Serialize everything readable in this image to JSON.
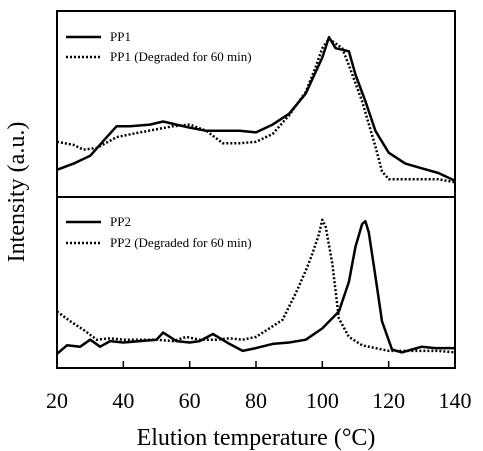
{
  "chart_data": [
    {
      "type": "line",
      "panel": "top",
      "xlabel": "Elution temperature (°C)",
      "ylabel": "Intensity (a.u.)",
      "xlim": [
        20,
        140
      ],
      "ylim": [
        0,
        1
      ],
      "legend_position": "top-left",
      "series": [
        {
          "name": "PP1",
          "style": "solid",
          "x": [
            20,
            25,
            30,
            35,
            38,
            42,
            48,
            52,
            56,
            60,
            65,
            70,
            75,
            80,
            85,
            90,
            95,
            100,
            102,
            104,
            108,
            110,
            113,
            116,
            120,
            125,
            130,
            135,
            140
          ],
          "y": [
            0.11,
            0.15,
            0.2,
            0.32,
            0.39,
            0.39,
            0.4,
            0.42,
            0.4,
            0.38,
            0.36,
            0.36,
            0.36,
            0.35,
            0.4,
            0.47,
            0.6,
            0.83,
            0.96,
            0.89,
            0.87,
            0.72,
            0.55,
            0.36,
            0.22,
            0.15,
            0.12,
            0.09,
            0.04
          ]
        },
        {
          "name": "PP1 (Degraded for 60 min)",
          "style": "dotted",
          "x": [
            20,
            25,
            28,
            32,
            38,
            45,
            55,
            60,
            65,
            70,
            75,
            80,
            85,
            90,
            95,
            98,
            100,
            102,
            104,
            106,
            108,
            112,
            116,
            118,
            120,
            125,
            130,
            135,
            140
          ],
          "y": [
            0.29,
            0.27,
            0.24,
            0.25,
            0.32,
            0.35,
            0.39,
            0.4,
            0.36,
            0.28,
            0.28,
            0.29,
            0.34,
            0.46,
            0.61,
            0.77,
            0.89,
            0.95,
            0.92,
            0.89,
            0.78,
            0.55,
            0.26,
            0.1,
            0.05,
            0.05,
            0.05,
            0.05,
            0.03
          ]
        }
      ]
    },
    {
      "type": "line",
      "panel": "bottom",
      "xlabel": "Elution temperature (°C)",
      "ylabel": "Intensity (a.u.)",
      "xlim": [
        20,
        140
      ],
      "ylim": [
        0,
        1
      ],
      "x_ticks": [
        20,
        40,
        60,
        80,
        100,
        120,
        140
      ],
      "legend_position": "top-left",
      "series": [
        {
          "name": "PP2",
          "style": "solid",
          "x": [
            20,
            23,
            27,
            30,
            33,
            36,
            40,
            45,
            50,
            52,
            56,
            60,
            63,
            67,
            72,
            76,
            80,
            85,
            90,
            95,
            100,
            105,
            108,
            110,
            112,
            113,
            114,
            116,
            118,
            121,
            124,
            127,
            130,
            134,
            140
          ],
          "y": [
            0.03,
            0.09,
            0.08,
            0.13,
            0.08,
            0.12,
            0.11,
            0.12,
            0.13,
            0.18,
            0.12,
            0.11,
            0.12,
            0.17,
            0.1,
            0.05,
            0.07,
            0.1,
            0.11,
            0.13,
            0.21,
            0.33,
            0.54,
            0.79,
            0.95,
            0.97,
            0.89,
            0.58,
            0.26,
            0.06,
            0.04,
            0.06,
            0.08,
            0.07,
            0.07
          ]
        },
        {
          "name": "PP2 (Degraded for 60 min)",
          "style": "dotted",
          "x": [
            20,
            24,
            28,
            32,
            36,
            40,
            45,
            50,
            55,
            59,
            63,
            68,
            72,
            76,
            80,
            84,
            88,
            92,
            95,
            97,
            99,
            100,
            101,
            103,
            105,
            108,
            112,
            116,
            120,
            125,
            130,
            135,
            140
          ],
          "y": [
            0.33,
            0.26,
            0.2,
            0.13,
            0.14,
            0.13,
            0.13,
            0.13,
            0.12,
            0.15,
            0.13,
            0.13,
            0.14,
            0.13,
            0.15,
            0.21,
            0.27,
            0.46,
            0.62,
            0.74,
            0.88,
            0.98,
            0.93,
            0.67,
            0.28,
            0.15,
            0.09,
            0.07,
            0.05,
            0.05,
            0.05,
            0.05,
            0.04
          ]
        }
      ]
    }
  ]
}
